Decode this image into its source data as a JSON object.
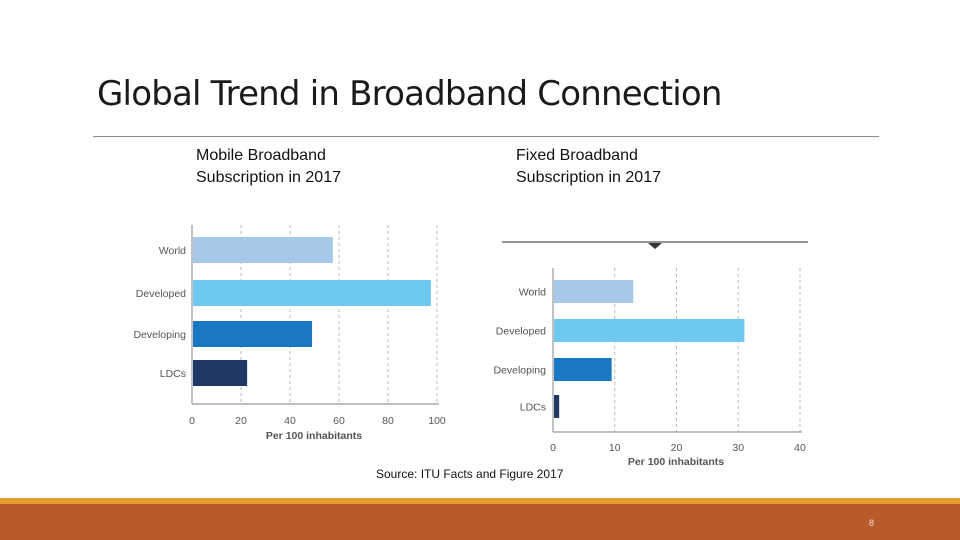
{
  "slide": {
    "title": "Global Trend in Broadband Connection",
    "source": "Source: ITU Facts and Figure 2017",
    "page_number": "8"
  },
  "captions": {
    "left": [
      "Mobile Broadband",
      "Subscription in 2017"
    ],
    "right": [
      "Fixed Broadband",
      "Subscription in 2017"
    ]
  },
  "colors": {
    "footer": "#b95a2a",
    "footer_line": "#e69b2d"
  },
  "chart_data": [
    {
      "type": "bar",
      "orientation": "horizontal",
      "categories": [
        "World",
        "Developed",
        "Developing",
        "LDCs"
      ],
      "values": [
        57.5,
        97.5,
        49,
        22.5
      ],
      "colors": [
        "#a6c9ea",
        "#6ec9ef",
        "#1a78c2",
        "#1f3864"
      ],
      "xlabel": "Per 100 inhabitants",
      "xlim": [
        0,
        100
      ],
      "xticks": [
        0,
        20,
        40,
        60,
        80,
        100
      ],
      "grid": "dashed vertical"
    },
    {
      "type": "bar",
      "orientation": "horizontal",
      "categories": [
        "World",
        "Developed",
        "Developing",
        "LDCs"
      ],
      "values": [
        13,
        31,
        9.5,
        1
      ],
      "colors": [
        "#a6c9ea",
        "#6ec9ef",
        "#1a78c2",
        "#1f3864"
      ],
      "xlabel": "Per 100 inhabitants",
      "xlim": [
        0,
        40
      ],
      "xticks": [
        0,
        10,
        20,
        30,
        40
      ],
      "grid": "dashed vertical"
    }
  ]
}
